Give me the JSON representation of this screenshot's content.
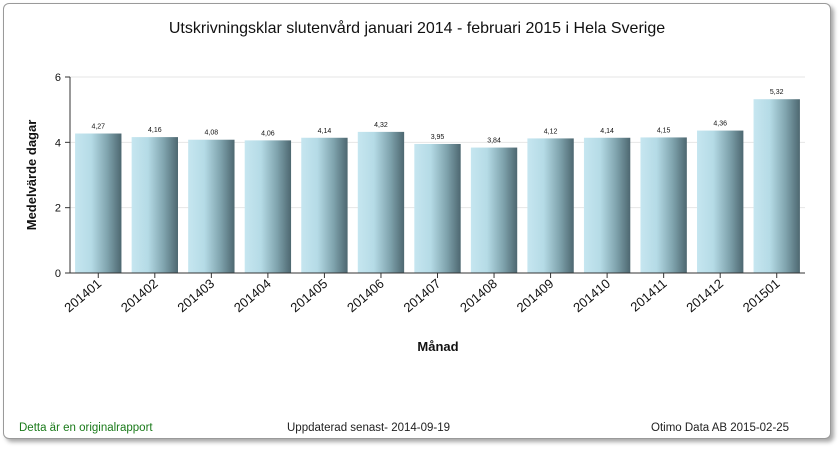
{
  "chart_data": {
    "type": "bar",
    "title": "Utskrivningsklar slutenvård januari 2014 - februari 2015 i Hela Sverige",
    "xlabel": "Månad",
    "ylabel": "Medelvärde dagar",
    "ylim": [
      0,
      6
    ],
    "yticks": [
      "0",
      "2",
      "4",
      "6"
    ],
    "grid": true,
    "categories": [
      "201401",
      "201402",
      "201403",
      "201404",
      "201405",
      "201406",
      "201407",
      "201408",
      "201409",
      "201410",
      "201411",
      "201412",
      "201501"
    ],
    "values": [
      4.27,
      4.16,
      4.08,
      4.06,
      4.14,
      4.32,
      3.95,
      3.84,
      4.12,
      4.14,
      4.15,
      4.36,
      5.32
    ],
    "value_labels": [
      "4,27",
      "4,16",
      "4,08",
      "4,06",
      "4,14",
      "4,32",
      "3,95",
      "3,84",
      "4,12",
      "4,14",
      "4,15",
      "4,36",
      "5,32"
    ]
  },
  "footer": {
    "left": "Detta är en originalrapport",
    "middle": "Uppdaterad senast- 2014-09-19",
    "right": "Otimo Data AB 2015-02-25"
  }
}
